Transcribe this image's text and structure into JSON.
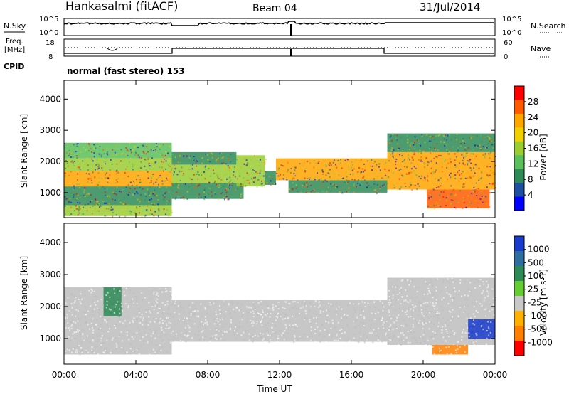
{
  "header": {
    "station": "Hankasalmi (fitACF)",
    "beam": "Beam 04",
    "date": "31/Jul/2014"
  },
  "status_panel": {
    "left_labels": {
      "nsky": "N.Sky",
      "freq": "Freq.",
      "freq_unit": "[MHz]",
      "cpid": "CPID"
    },
    "right_labels": {
      "nsearch": "N.Search",
      "nave": "Nave"
    },
    "nsky_ticks": [
      "10^5",
      "10^0"
    ],
    "nsearch_ticks": [
      "10^5",
      "10^0"
    ],
    "freq_ticks": [
      "18",
      "8"
    ],
    "nave_ticks": [
      "60",
      "0"
    ],
    "cpid_text": "normal (fast stereo) 153"
  },
  "colors": {
    "power_scale": [
      "#0000ff",
      "#1f4fa0",
      "#2e8b57",
      "#5bbf5b",
      "#9acd32",
      "#f0d000",
      "#ffa500",
      "#ff5a00",
      "#ff0000"
    ],
    "velocity_scale": [
      "#1a3ccc",
      "#2e6fa0",
      "#2e8b57",
      "#66cc33",
      "#c8c8c8",
      "#ffb000",
      "#ff7f00",
      "#ff0000"
    ],
    "ground_scatter": "#bdbdbd"
  },
  "chart_data": [
    {
      "type": "heatmap",
      "name": "power",
      "ylabel": "Slant Range [km]",
      "xlabel": "Time UT",
      "x_ticks": [
        "00:00",
        "04:00",
        "08:00",
        "12:00",
        "16:00",
        "20:00",
        "00:00"
      ],
      "y_ticks": [
        "1000",
        "2000",
        "3000",
        "4000"
      ],
      "xlim": [
        0,
        24
      ],
      "ylim": [
        200,
        4600
      ],
      "colorbar": {
        "label": "Power [dB]",
        "ticks": [
          "4",
          "8",
          "12",
          "16",
          "20",
          "24",
          "28"
        ],
        "range": [
          0,
          30
        ]
      },
      "bands": [
        {
          "t0": 0.0,
          "t1": 6.0,
          "r0": 1200,
          "r1": 1700,
          "level": 24
        },
        {
          "t0": 0.0,
          "t1": 6.0,
          "r0": 1700,
          "r1": 2100,
          "level": 16
        },
        {
          "t0": 0.0,
          "t1": 6.0,
          "r0": 2100,
          "r1": 2600,
          "level": 12
        },
        {
          "t0": 0.0,
          "t1": 6.0,
          "r0": 600,
          "r1": 1200,
          "level": 8
        },
        {
          "t0": 0.0,
          "t1": 6.0,
          "r0": 250,
          "r1": 600,
          "level": 16
        },
        {
          "t0": 6.0,
          "t1": 9.6,
          "r0": 1300,
          "r1": 1900,
          "level": 16
        },
        {
          "t0": 6.0,
          "t1": 9.6,
          "r0": 1900,
          "r1": 2300,
          "level": 8
        },
        {
          "t0": 6.0,
          "t1": 10.0,
          "r0": 800,
          "r1": 1300,
          "level": 8
        },
        {
          "t0": 9.6,
          "t1": 11.2,
          "r0": 1200,
          "r1": 2200,
          "level": 16
        },
        {
          "t0": 11.2,
          "t1": 11.8,
          "r0": 1250,
          "r1": 1700,
          "level": 8
        },
        {
          "t0": 11.8,
          "t1": 18.0,
          "r0": 1400,
          "r1": 2100,
          "level": 22
        },
        {
          "t0": 12.5,
          "t1": 18.0,
          "r0": 1000,
          "r1": 1400,
          "level": 8
        },
        {
          "t0": 18.0,
          "t1": 24.0,
          "r0": 1100,
          "r1": 2300,
          "level": 22
        },
        {
          "t0": 18.0,
          "t1": 24.0,
          "r0": 2300,
          "r1": 2900,
          "level": 8
        },
        {
          "t0": 20.2,
          "t1": 23.7,
          "r0": 500,
          "r1": 1100,
          "level": 28
        }
      ]
    },
    {
      "type": "heatmap",
      "name": "velocity",
      "ylabel": "Slant Range [km]",
      "xlabel": "Time UT",
      "x_ticks": [
        "00:00",
        "04:00",
        "08:00",
        "12:00",
        "16:00",
        "20:00",
        "00:00"
      ],
      "y_ticks": [
        "1000",
        "2000",
        "3000",
        "4000"
      ],
      "xlim": [
        0,
        24
      ],
      "ylim": [
        200,
        4600
      ],
      "colorbar": {
        "label": "Velocity [m s-1]",
        "ticks": [
          "1000",
          "500",
          "100",
          "25",
          "-25",
          "-100",
          "-500",
          "-1000"
        ],
        "range": [
          -1000,
          1000
        ]
      },
      "bands": [
        {
          "t0": 0.0,
          "t1": 6.0,
          "r0": 500,
          "r1": 2600,
          "value": 0
        },
        {
          "t0": 2.2,
          "t1": 3.2,
          "r0": 1700,
          "r1": 2600,
          "value": 300
        },
        {
          "t0": 6.0,
          "t1": 18.0,
          "r0": 900,
          "r1": 2200,
          "value": 0
        },
        {
          "t0": 18.0,
          "t1": 24.0,
          "r0": 800,
          "r1": 2900,
          "value": 0
        },
        {
          "t0": 20.5,
          "t1": 22.5,
          "r0": 500,
          "r1": 800,
          "value": -150
        },
        {
          "t0": 22.5,
          "t1": 24.0,
          "r0": 1000,
          "r1": 1600,
          "value": 700
        }
      ]
    }
  ]
}
